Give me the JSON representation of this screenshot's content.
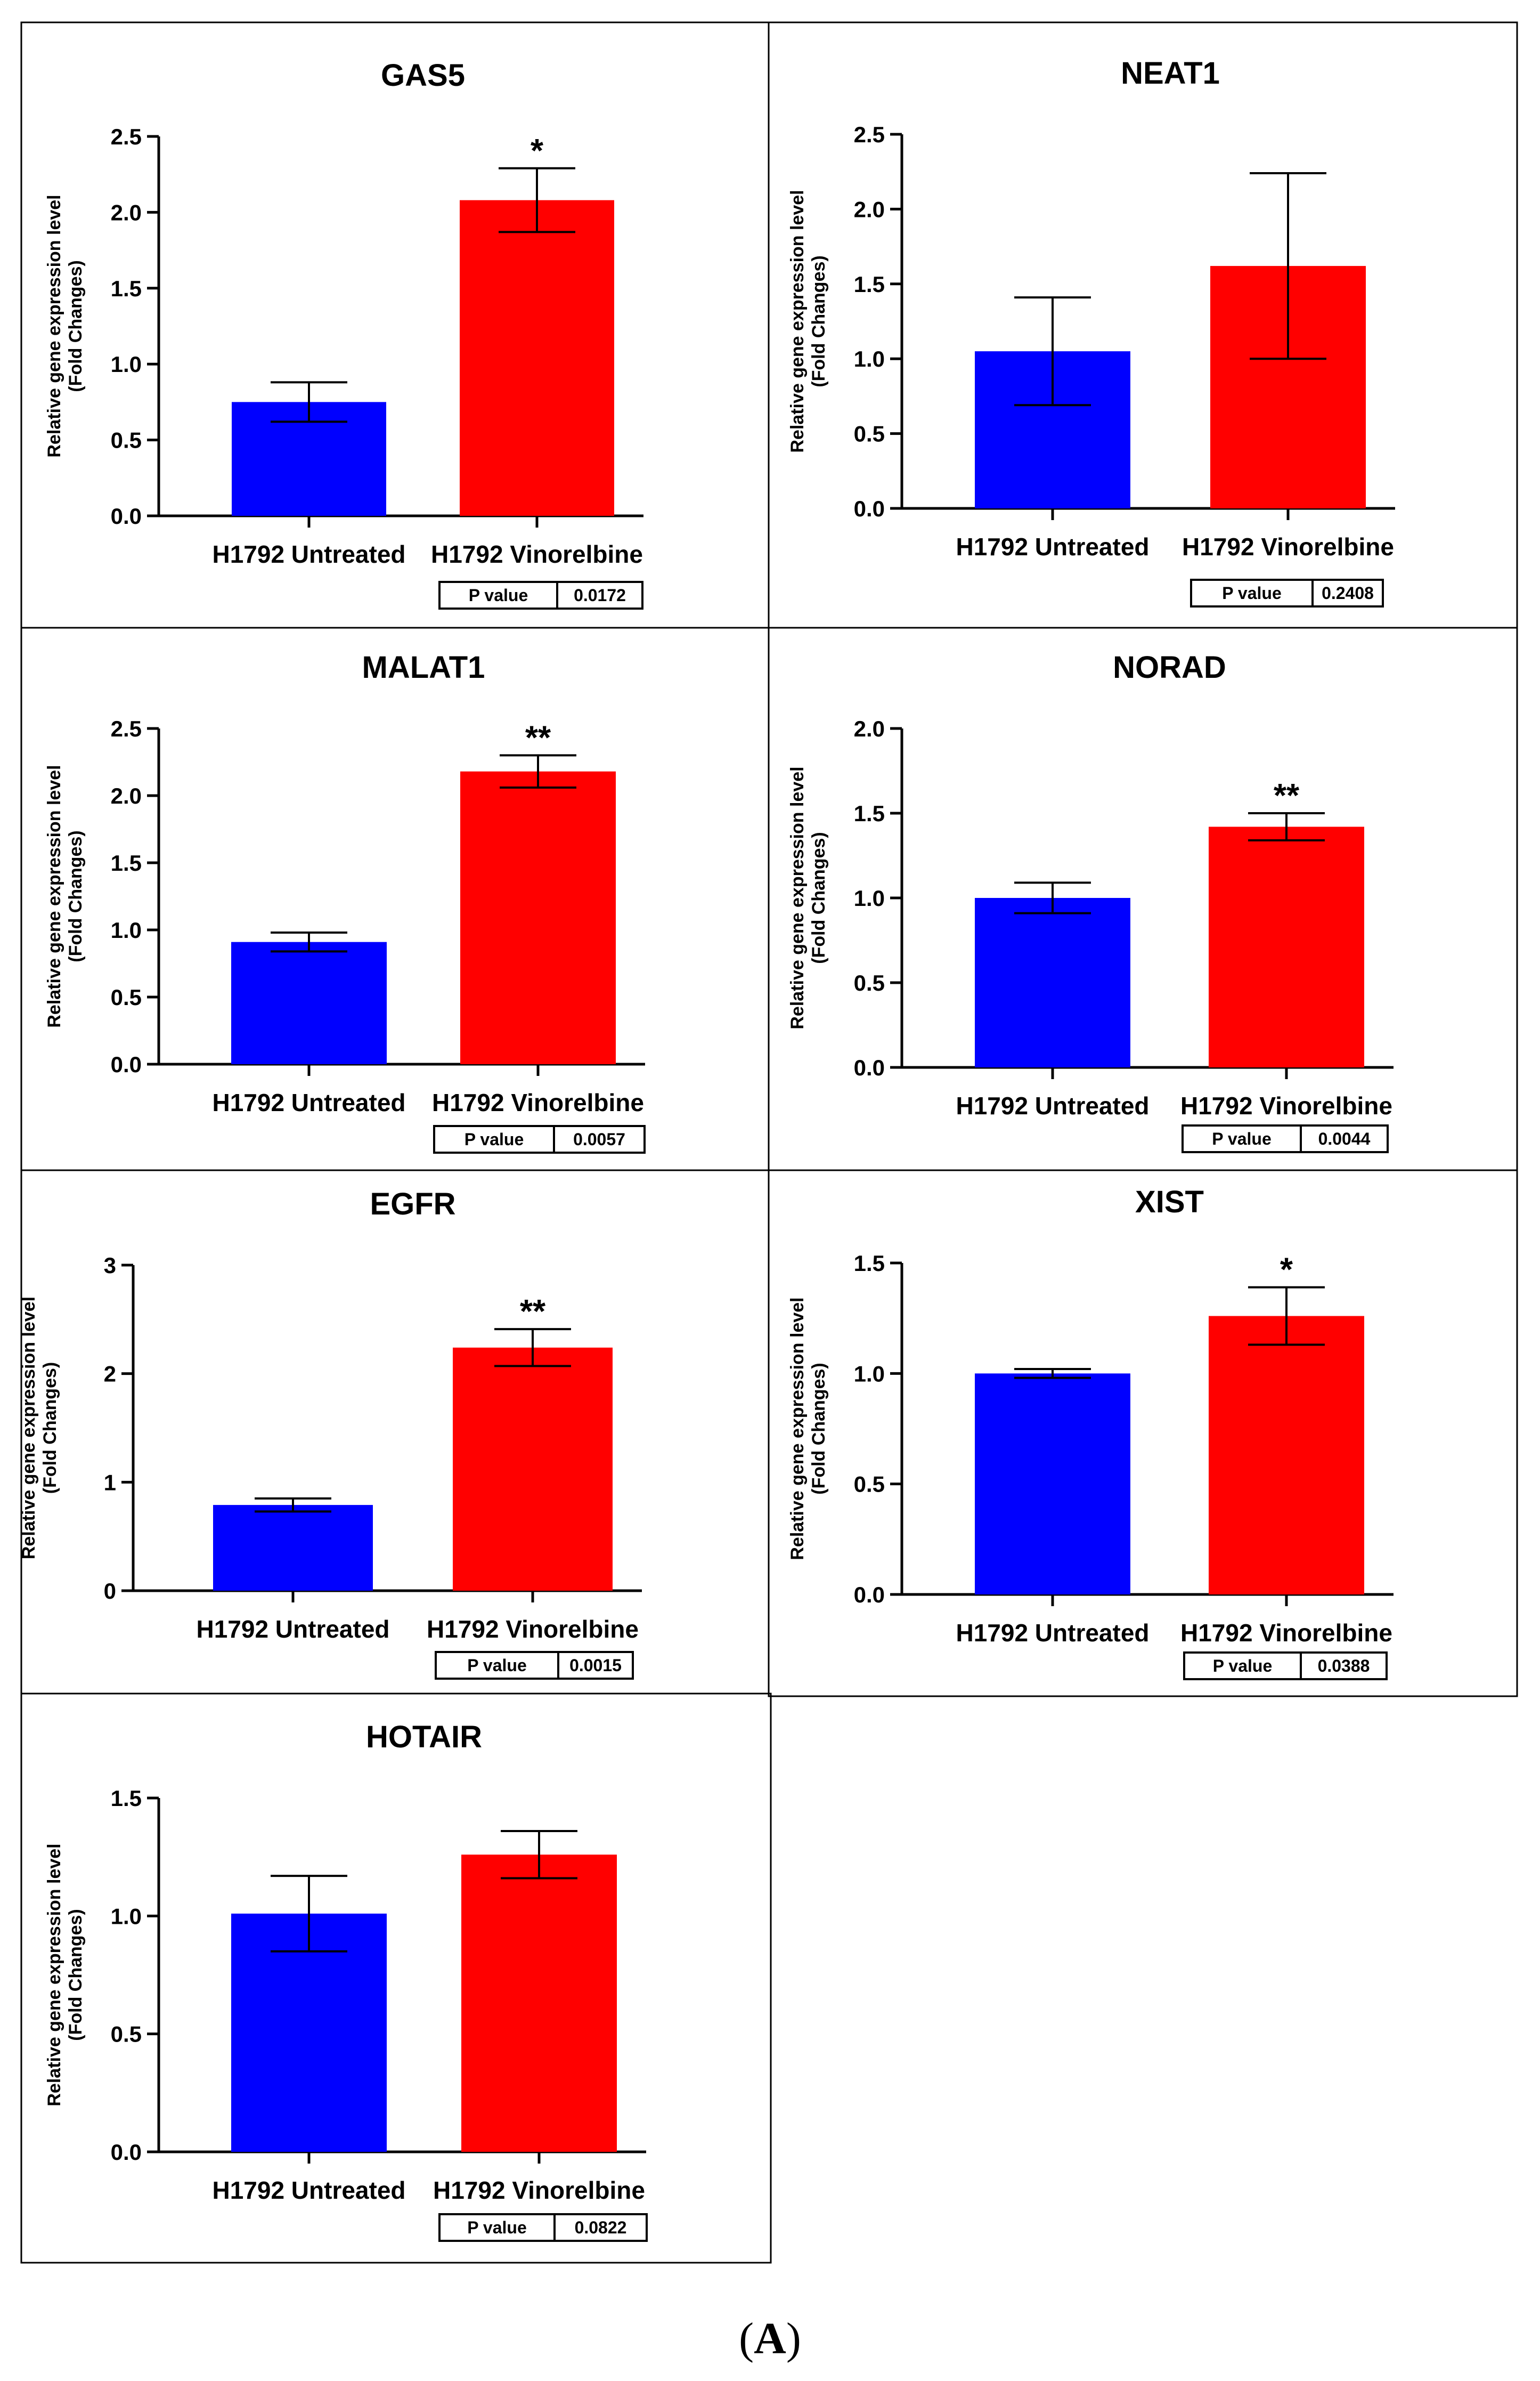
{
  "figure_label": "A",
  "chart_data": [
    {
      "type": "bar",
      "title": "GAS5",
      "ylabel": "Relative gene expression level",
      "ylabel2": "(Fold Changes)",
      "categories": [
        "H1792 Untreated",
        "H1792 Vinorelbine"
      ],
      "values": [
        0.75,
        2.08
      ],
      "errors": [
        0.13,
        0.21
      ],
      "ylim": [
        0,
        2.5
      ],
      "yticks": [
        "0.0",
        "0.5",
        "1.0",
        "1.5",
        "2.0",
        "2.5"
      ],
      "significance": [
        "",
        "*"
      ],
      "p_label": "P value",
      "p_value": "0.0172",
      "colors": [
        "#0000ff",
        "#ff0000"
      ]
    },
    {
      "type": "bar",
      "title": "NEAT1",
      "ylabel": "Relative gene expression level",
      "ylabel2": "(Fold Changes)",
      "categories": [
        "H1792 Untreated",
        "H1792 Vinorelbine"
      ],
      "values": [
        1.05,
        1.62
      ],
      "errors": [
        0.36,
        0.62
      ],
      "ylim": [
        0,
        2.5
      ],
      "yticks": [
        "0.0",
        "0.5",
        "1.0",
        "1.5",
        "2.0",
        "2.5"
      ],
      "significance": [
        "",
        ""
      ],
      "p_label": "P value",
      "p_value": "0.2408",
      "colors": [
        "#0000ff",
        "#ff0000"
      ]
    },
    {
      "type": "bar",
      "title": "MALAT1",
      "ylabel": "Relative gene expression level",
      "ylabel2": "(Fold Changes)",
      "categories": [
        "H1792 Untreated",
        "H1792 Vinorelbine"
      ],
      "values": [
        0.91,
        2.18
      ],
      "errors": [
        0.07,
        0.12
      ],
      "ylim": [
        0,
        2.5
      ],
      "yticks": [
        "0.0",
        "0.5",
        "1.0",
        "1.5",
        "2.0",
        "2.5"
      ],
      "significance": [
        "",
        "**"
      ],
      "p_label": "P value",
      "p_value": "0.0057",
      "colors": [
        "#0000ff",
        "#ff0000"
      ]
    },
    {
      "type": "bar",
      "title": "NORAD",
      "ylabel": "Relative gene expression level",
      "ylabel2": "(Fold Changes)",
      "categories": [
        "H1792 Untreated",
        "H1792 Vinorelbine"
      ],
      "values": [
        1.0,
        1.42
      ],
      "errors": [
        0.09,
        0.08
      ],
      "ylim": [
        0,
        2.0
      ],
      "yticks": [
        "0.0",
        "0.5",
        "1.0",
        "1.5",
        "2.0"
      ],
      "significance": [
        "",
        "**"
      ],
      "p_label": "P value",
      "p_value": "0.0044",
      "colors": [
        "#0000ff",
        "#ff0000"
      ]
    },
    {
      "type": "bar",
      "title": "EGFR",
      "ylabel": "Relative gene expression level",
      "ylabel2": "(Fold Changes)",
      "categories": [
        "H1792 Untreated",
        "H1792 Vinorelbine"
      ],
      "values": [
        0.79,
        2.24
      ],
      "errors": [
        0.06,
        0.17
      ],
      "ylim": [
        0,
        3
      ],
      "yticks": [
        "0",
        "1",
        "2",
        "3"
      ],
      "significance": [
        "",
        "**"
      ],
      "p_label": "P value",
      "p_value": "0.0015",
      "colors": [
        "#0000ff",
        "#ff0000"
      ]
    },
    {
      "type": "bar",
      "title": "XIST",
      "ylabel": "Relative gene expression level",
      "ylabel2": "(Fold Changes)",
      "categories": [
        "H1792 Untreated",
        "H1792 Vinorelbine"
      ],
      "values": [
        1.0,
        1.26
      ],
      "errors": [
        0.02,
        0.13
      ],
      "ylim": [
        0,
        1.5
      ],
      "yticks": [
        "0.0",
        "0.5",
        "1.0",
        "1.5"
      ],
      "significance": [
        "",
        "*"
      ],
      "p_label": "P value",
      "p_value": "0.0388",
      "colors": [
        "#0000ff",
        "#ff0000"
      ]
    },
    {
      "type": "bar",
      "title": "HOTAIR",
      "ylabel": "Relative gene expression level",
      "ylabel2": "(Fold Changes)",
      "categories": [
        "H1792 Untreated",
        "H1792 Vinorelbine"
      ],
      "values": [
        1.01,
        1.26
      ],
      "errors": [
        0.16,
        0.1
      ],
      "ylim": [
        0,
        1.5
      ],
      "yticks": [
        "0.0",
        "0.5",
        "1.0",
        "1.5"
      ],
      "significance": [
        "",
        ""
      ],
      "p_label": "P value",
      "p_value": "0.0822",
      "colors": [
        "#0000ff",
        "#ff0000"
      ]
    }
  ]
}
